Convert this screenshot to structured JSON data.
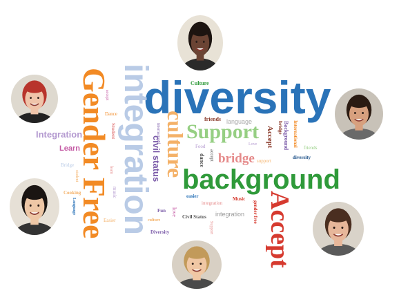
{
  "word_cloud": {
    "words": [
      {
        "text": "diversity",
        "color": "#2a73b8"
      },
      {
        "text": "integration",
        "color": "#b9cbe6"
      },
      {
        "text": "Gender Free",
        "color": "#f28a24"
      },
      {
        "text": "background",
        "color": "#2f9a3a"
      },
      {
        "text": "Accept",
        "color": "#d63a2f"
      },
      {
        "text": "Support",
        "color": "#96cf83"
      },
      {
        "text": "culture",
        "color": "#f4b168"
      },
      {
        "text": "bridge",
        "color": "#e58a8a"
      },
      {
        "text": "civil status",
        "color": "#7a5aa8"
      },
      {
        "text": "Integration",
        "color": "#b49ad0"
      },
      {
        "text": "Learn",
        "color": "#c45aa4"
      },
      {
        "text": "Culture",
        "color": "#2f9a3a"
      },
      {
        "text": "friends",
        "color": "#8a3a2a"
      },
      {
        "text": "language",
        "color": "#aaaaaa"
      },
      {
        "text": "Accept",
        "color": "#8a3a2a"
      },
      {
        "text": "bridge",
        "color": "#8a3a2a"
      },
      {
        "text": "Background",
        "color": "#7a5aa8"
      },
      {
        "text": "International",
        "color": "#f28a24"
      },
      {
        "text": "friends",
        "color": "#96cf83"
      },
      {
        "text": "diversity",
        "color": "#1a4e86"
      },
      {
        "text": "Love",
        "color": "#b49ad0"
      },
      {
        "text": "support",
        "color": "#f4b168"
      },
      {
        "text": "Food",
        "color": "#b49ad0"
      },
      {
        "text": "accept",
        "color": "#555555"
      },
      {
        "text": "dance",
        "color": "#555555"
      },
      {
        "text": "easier",
        "color": "#2a73b8"
      },
      {
        "text": "integration",
        "color": "#e58a8a"
      },
      {
        "text": "Music",
        "color": "#d63a2f"
      },
      {
        "text": "gender free",
        "color": "#d63a2f"
      },
      {
        "text": "integration",
        "color": "#999999"
      },
      {
        "text": "Civil Status",
        "color": "#555555"
      },
      {
        "text": "Support",
        "color": "#e58a8a"
      },
      {
        "text": "Fun",
        "color": "#7a5aa8"
      },
      {
        "text": "culture",
        "color": "#f4b168"
      },
      {
        "text": "love",
        "color": "#c45aa4"
      },
      {
        "text": "Diversity",
        "color": "#7a5aa8"
      },
      {
        "text": "Easier",
        "color": "#f4b168"
      },
      {
        "text": "music",
        "color": "#b49ad0"
      },
      {
        "text": "learn",
        "color": "#e58a8a"
      },
      {
        "text": "Student",
        "color": "#e58a8a"
      },
      {
        "text": "Dance",
        "color": "#f28a24"
      },
      {
        "text": "Bridge",
        "color": "#b9cbe6"
      },
      {
        "text": "Cooking",
        "color": "#f4b168"
      },
      {
        "text": "Language",
        "color": "#2a73b8"
      },
      {
        "text": "international",
        "color": "#7a5aa8"
      },
      {
        "text": "student",
        "color": "#f4b168"
      },
      {
        "text": "accept",
        "color": "#c45aa4"
      }
    ]
  },
  "avatars": [
    {
      "name": "man-short-hair",
      "skin": "#6b4434",
      "hair": "#1c1410",
      "bg": "#e8e2d6",
      "shirt": "#2a2a2a"
    },
    {
      "name": "woman-red-hair",
      "skin": "#efc4aa",
      "hair": "#b8342c",
      "bg": "#ded9cf",
      "shirt": "#222222"
    },
    {
      "name": "man-beard",
      "skin": "#d7a07e",
      "hair": "#2b1b12",
      "bg": "#c8c2b8",
      "shirt": "#6a6a6a"
    },
    {
      "name": "woman-dark-hair",
      "skin": "#eec7a6",
      "hair": "#1a1512",
      "bg": "#e6e0d6",
      "shirt": "#333333"
    },
    {
      "name": "woman-blonde",
      "skin": "#f0c7a4",
      "hair": "#c29a5a",
      "bg": "#d8d0c4",
      "shirt": "#4a4a4a"
    },
    {
      "name": "woman-glasses",
      "skin": "#e7b79a",
      "hair": "#4a2e20",
      "bg": "#d9d3c9",
      "shirt": "#5a5a5a"
    }
  ]
}
